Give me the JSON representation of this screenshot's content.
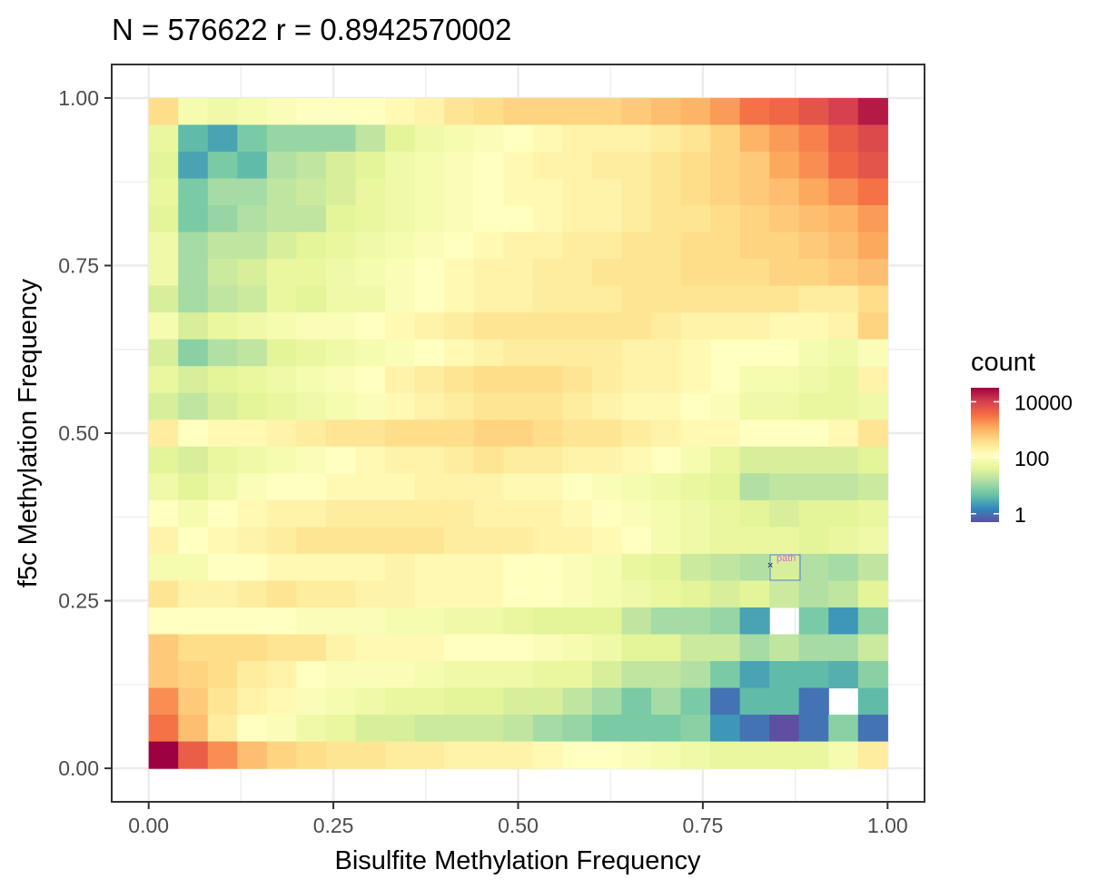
{
  "chart_data": {
    "type": "heatmap",
    "title": "N = 576622 r = 0.8942570002",
    "xlabel": "Bisulfite Methylation Frequency",
    "ylabel": "f5c Methylation Frequency",
    "xlim": [
      -0.05,
      1.05
    ],
    "ylim": [
      -0.05,
      1.05
    ],
    "xticks": [
      0.0,
      0.25,
      0.5,
      0.75,
      1.0
    ],
    "yticks": [
      0.0,
      0.25,
      0.5,
      0.75,
      1.0
    ],
    "xtick_labels": [
      "0.00",
      "0.25",
      "0.50",
      "0.75",
      "1.00"
    ],
    "ytick_labels": [
      "0.00",
      "0.25",
      "0.50",
      "0.75",
      "1.00"
    ],
    "grid": true,
    "bin_width": 0.04,
    "x_bin_centers": [
      0.02,
      0.06,
      0.1,
      0.14,
      0.18,
      0.22,
      0.26,
      0.3,
      0.34,
      0.38,
      0.42,
      0.46,
      0.5,
      0.54,
      0.58,
      0.62,
      0.66,
      0.7,
      0.74,
      0.78,
      0.82,
      0.86,
      0.9,
      0.94,
      0.98
    ],
    "y_bin_centers": [
      0.98,
      0.94,
      0.9,
      0.86,
      0.82,
      0.78,
      0.74,
      0.7,
      0.66,
      0.62,
      0.58,
      0.54,
      0.5,
      0.46,
      0.42,
      0.38,
      0.34,
      0.3,
      0.26,
      0.22,
      0.18,
      0.14,
      0.1,
      0.06,
      0.02
    ],
    "log10_counts_rows_top_to_bottom": [
      [
        2.6,
        1.9,
        1.8,
        1.9,
        2.0,
        2.1,
        2.1,
        2.1,
        2.2,
        2.3,
        2.5,
        2.6,
        2.7,
        2.7,
        2.7,
        2.7,
        2.8,
        2.9,
        3.0,
        3.2,
        3.5,
        3.6,
        3.8,
        4.0,
        4.3
      ],
      [
        1.7,
        0.6,
        0.4,
        0.8,
        1.0,
        1.0,
        1.0,
        1.3,
        1.6,
        1.8,
        1.9,
        2.0,
        2.1,
        2.2,
        2.3,
        2.3,
        2.3,
        2.4,
        2.5,
        2.7,
        3.0,
        3.2,
        3.4,
        3.7,
        3.9
      ],
      [
        1.6,
        0.4,
        0.8,
        0.6,
        1.2,
        1.3,
        1.5,
        1.6,
        1.8,
        1.9,
        2.0,
        2.1,
        2.2,
        2.3,
        2.3,
        2.4,
        2.4,
        2.5,
        2.6,
        2.7,
        2.8,
        3.1,
        3.3,
        3.6,
        3.8
      ],
      [
        1.7,
        0.8,
        1.1,
        1.1,
        1.3,
        1.4,
        1.5,
        1.7,
        1.8,
        1.9,
        2.0,
        2.1,
        2.2,
        2.2,
        2.3,
        2.3,
        2.4,
        2.5,
        2.6,
        2.7,
        2.8,
        2.9,
        3.1,
        3.3,
        3.5
      ],
      [
        1.6,
        0.8,
        1.0,
        1.2,
        1.3,
        1.3,
        1.6,
        1.7,
        1.8,
        1.9,
        2.0,
        2.1,
        2.1,
        2.2,
        2.3,
        2.3,
        2.4,
        2.5,
        2.5,
        2.6,
        2.7,
        2.8,
        2.9,
        3.0,
        3.2
      ],
      [
        1.8,
        1.1,
        1.3,
        1.3,
        1.5,
        1.6,
        1.7,
        1.8,
        1.9,
        2.0,
        2.1,
        2.2,
        2.3,
        2.3,
        2.4,
        2.4,
        2.5,
        2.5,
        2.6,
        2.6,
        2.7,
        2.7,
        2.8,
        2.9,
        3.1
      ],
      [
        1.8,
        1.1,
        1.4,
        1.5,
        1.7,
        1.7,
        1.8,
        1.9,
        2.0,
        2.1,
        2.2,
        2.3,
        2.3,
        2.4,
        2.4,
        2.5,
        2.5,
        2.5,
        2.6,
        2.6,
        2.6,
        2.7,
        2.7,
        2.8,
        2.9
      ],
      [
        1.5,
        1.1,
        1.3,
        1.4,
        1.7,
        1.6,
        1.8,
        1.8,
        2.0,
        2.1,
        2.2,
        2.3,
        2.3,
        2.4,
        2.4,
        2.4,
        2.5,
        2.5,
        2.5,
        2.5,
        2.5,
        2.5,
        2.4,
        2.4,
        2.6
      ],
      [
        1.9,
        1.5,
        1.7,
        1.8,
        1.9,
        2.0,
        2.0,
        2.1,
        2.2,
        2.3,
        2.4,
        2.5,
        2.5,
        2.5,
        2.5,
        2.5,
        2.5,
        2.4,
        2.3,
        2.3,
        2.3,
        2.2,
        2.2,
        2.3,
        2.7
      ],
      [
        1.5,
        0.9,
        1.2,
        1.3,
        1.6,
        1.7,
        1.8,
        1.9,
        2.0,
        2.1,
        2.2,
        2.3,
        2.4,
        2.4,
        2.4,
        2.4,
        2.3,
        2.3,
        2.2,
        2.1,
        2.1,
        2.1,
        1.9,
        1.8,
        2.0
      ],
      [
        1.7,
        1.5,
        1.6,
        1.7,
        1.8,
        1.9,
        2.0,
        2.1,
        2.3,
        2.4,
        2.5,
        2.6,
        2.6,
        2.6,
        2.5,
        2.4,
        2.3,
        2.3,
        2.2,
        2.1,
        1.9,
        1.9,
        1.8,
        1.7,
        2.3
      ],
      [
        1.5,
        1.3,
        1.5,
        1.6,
        1.7,
        1.8,
        1.9,
        2.0,
        2.2,
        2.3,
        2.4,
        2.5,
        2.5,
        2.5,
        2.4,
        2.3,
        2.2,
        2.2,
        2.1,
        2.0,
        1.8,
        1.8,
        1.7,
        1.7,
        1.8
      ],
      [
        2.4,
        2.1,
        2.2,
        2.2,
        2.3,
        2.4,
        2.5,
        2.5,
        2.6,
        2.6,
        2.6,
        2.7,
        2.7,
        2.6,
        2.5,
        2.5,
        2.4,
        2.3,
        2.2,
        2.2,
        2.1,
        2.1,
        2.1,
        2.2,
        2.5
      ],
      [
        1.6,
        1.5,
        1.7,
        1.8,
        1.9,
        2.0,
        2.1,
        2.2,
        2.3,
        2.3,
        2.4,
        2.5,
        2.4,
        2.4,
        2.3,
        2.3,
        2.2,
        2.1,
        1.9,
        1.7,
        1.5,
        1.5,
        1.5,
        1.5,
        1.6
      ],
      [
        1.8,
        1.6,
        1.8,
        2.0,
        2.1,
        2.1,
        2.2,
        2.2,
        2.2,
        2.3,
        2.3,
        2.3,
        2.2,
        2.2,
        2.1,
        2.0,
        1.9,
        1.8,
        1.7,
        1.6,
        1.2,
        1.3,
        1.3,
        1.3,
        1.4
      ],
      [
        2.1,
        1.9,
        2.1,
        2.2,
        2.3,
        2.3,
        2.4,
        2.4,
        2.4,
        2.4,
        2.4,
        2.3,
        2.3,
        2.3,
        2.2,
        2.1,
        2.0,
        1.9,
        1.8,
        1.7,
        1.6,
        1.5,
        1.6,
        1.6,
        1.7
      ],
      [
        2.3,
        2.1,
        2.2,
        2.3,
        2.4,
        2.5,
        2.5,
        2.5,
        2.5,
        2.5,
        2.4,
        2.4,
        2.4,
        2.3,
        2.3,
        2.2,
        2.1,
        1.9,
        1.8,
        1.7,
        1.7,
        1.7,
        1.6,
        1.7,
        1.8
      ],
      [
        1.9,
        1.9,
        2.1,
        2.1,
        2.2,
        2.2,
        2.2,
        2.2,
        2.3,
        2.2,
        2.2,
        2.2,
        2.1,
        2.1,
        2.0,
        1.9,
        1.7,
        1.6,
        1.4,
        1.3,
        1.2,
        1.5,
        1.2,
        1.1,
        1.3
      ],
      [
        2.5,
        2.3,
        2.3,
        2.4,
        2.5,
        2.4,
        2.4,
        2.3,
        2.3,
        2.2,
        2.2,
        2.2,
        2.1,
        2.1,
        2.0,
        1.9,
        1.8,
        1.7,
        1.6,
        1.5,
        1.6,
        1.4,
        1.2,
        1.3,
        1.6
      ],
      [
        2.1,
        2.1,
        2.1,
        2.1,
        2.1,
        2.0,
        2.0,
        2.0,
        1.9,
        1.9,
        1.8,
        1.8,
        1.7,
        1.6,
        1.6,
        1.6,
        1.3,
        1.1,
        1.1,
        1.0,
        0.4,
        null,
        0.8,
        0.3,
        0.9
      ],
      [
        2.8,
        2.6,
        2.6,
        2.6,
        2.5,
        2.5,
        2.3,
        2.2,
        2.2,
        2.2,
        2.1,
        2.1,
        2.1,
        2.0,
        1.9,
        1.8,
        1.6,
        1.6,
        1.4,
        1.4,
        1.1,
        1.3,
        1.1,
        1.1,
        1.4
      ],
      [
        2.8,
        2.7,
        2.6,
        2.4,
        2.3,
        2.1,
        2.0,
        2.0,
        2.0,
        1.9,
        1.8,
        1.8,
        1.8,
        1.7,
        1.7,
        1.5,
        1.3,
        1.3,
        1.2,
        0.8,
        0.4,
        0.6,
        0.6,
        0.5,
        0.9
      ],
      [
        3.3,
        2.8,
        2.5,
        2.3,
        2.2,
        2.0,
        1.9,
        1.8,
        1.7,
        1.7,
        1.6,
        1.6,
        1.5,
        1.5,
        1.3,
        1.1,
        0.8,
        1.1,
        0.8,
        0.0,
        0.6,
        0.6,
        0.0,
        null,
        0.6
      ],
      [
        3.5,
        2.9,
        2.4,
        2.1,
        2.0,
        1.8,
        1.7,
        1.5,
        1.5,
        1.4,
        1.4,
        1.4,
        1.3,
        1.1,
        1.0,
        0.8,
        0.8,
        0.8,
        0.9,
        0.3,
        0.0,
        -0.3,
        0.0,
        0.9,
        0.0
      ],
      [
        4.5,
        3.7,
        3.3,
        2.9,
        2.7,
        2.6,
        2.5,
        2.5,
        2.4,
        2.4,
        2.3,
        2.3,
        2.3,
        2.2,
        2.1,
        2.1,
        2.0,
        1.9,
        1.8,
        1.7,
        1.7,
        1.7,
        1.7,
        1.9,
        2.4
      ]
    ],
    "legend": {
      "title": "count",
      "placement": "right",
      "scale": "log10",
      "breaks": [
        "10000",
        "100",
        "1"
      ],
      "break_log10": [
        4,
        2,
        0
      ],
      "range_log10": [
        -0.3,
        4.5
      ],
      "palette": [
        "#5E4FA2",
        "#3288BD",
        "#66C2A5",
        "#ABDDA4",
        "#E6F598",
        "#FFFFBF",
        "#FEE08B",
        "#FDAE61",
        "#F46D43",
        "#D53E4F",
        "#9E0142"
      ]
    },
    "annotation": {
      "label": "path"
    }
  },
  "colors": {
    "panel_border": "#333333",
    "grid": "#EBEBEB",
    "axis_text": "#4D4D4D",
    "annotation_text": "#E066E0",
    "annotation_box": "#4F7FD9"
  }
}
